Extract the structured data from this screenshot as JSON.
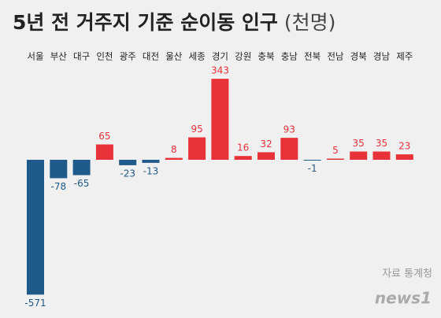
{
  "chart_data": {
    "type": "bar",
    "title": "5년 전 거주지 기준 순이동 인구",
    "unit": "(천명)",
    "categories": [
      "서울",
      "부산",
      "대구",
      "인천",
      "광주",
      "대전",
      "울산",
      "세종",
      "경기",
      "강원",
      "충북",
      "충남",
      "전북",
      "전남",
      "경북",
      "경남",
      "제주"
    ],
    "values": [
      -571,
      -78,
      -65,
      65,
      -23,
      -13,
      8,
      95,
      343,
      16,
      32,
      93,
      -1,
      5,
      35,
      35,
      23
    ],
    "positive_color": "#e8323a",
    "negative_color": "#1f5a8a",
    "source": "자료 통계청",
    "logo": "news1"
  }
}
